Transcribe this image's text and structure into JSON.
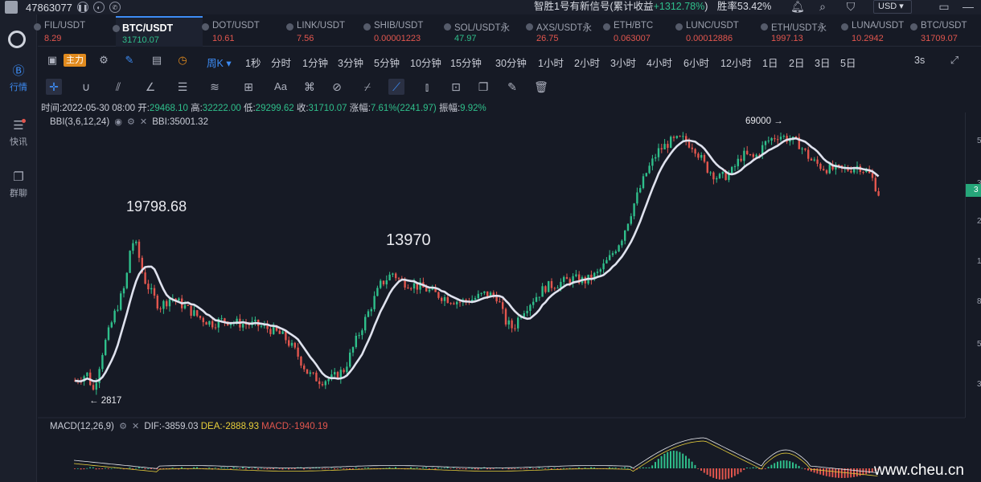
{
  "topbar": {
    "user_id": "47863077",
    "signal_prefix": "智胜1号有新信号(累计收益",
    "signal_gain": "+1312.78%",
    "signal_suffix": ")",
    "win_rate": "胜率53.42%",
    "currency": "USD"
  },
  "nav": {
    "items": [
      {
        "label": "行情",
        "icon": "market-icon",
        "active": true
      },
      {
        "label": "快讯",
        "icon": "news-icon",
        "active": false
      },
      {
        "label": "群聊",
        "icon": "chat-icon",
        "active": false
      }
    ]
  },
  "tickers": [
    {
      "symbol": "FIL/USDT",
      "price": "8.29",
      "dir": "down"
    },
    {
      "symbol": "BTC/USDT",
      "price": "31710.07",
      "dir": "up",
      "active": true
    },
    {
      "symbol": "DOT/USDT",
      "price": "10.61",
      "dir": "down"
    },
    {
      "symbol": "LINK/USDT",
      "price": "7.56",
      "dir": "down"
    },
    {
      "symbol": "SHIB/USDT",
      "price": "0.00001223",
      "dir": "down"
    },
    {
      "symbol": "SOL/USDT永",
      "price": "47.97",
      "dir": "up"
    },
    {
      "symbol": "AXS/USDT永",
      "price": "26.75",
      "dir": "down"
    },
    {
      "symbol": "ETH/BTC",
      "price": "0.063007",
      "dir": "down"
    },
    {
      "symbol": "LUNC/USDT",
      "price": "0.00012886",
      "dir": "down"
    },
    {
      "symbol": "ETH/USDT永",
      "price": "1997.13",
      "dir": "down"
    },
    {
      "symbol": "LUNA/USDT",
      "price": "10.2942",
      "dir": "down"
    },
    {
      "symbol": "BTC/USDT",
      "price": "31709.07",
      "dir": "down"
    }
  ],
  "intervals": {
    "main_label": "主力",
    "selected": "周K",
    "items": [
      "1秒",
      "分时",
      "1分钟",
      "3分钟",
      "5分钟",
      "10分钟",
      "15分钟",
      "30分钟",
      "1小时",
      "2小时",
      "3小时",
      "4小时",
      "6小时",
      "12小时",
      "1日",
      "2日",
      "3日",
      "5日"
    ],
    "refresh": "3s"
  },
  "info": {
    "time_label": "时间:",
    "time": "2022-05-30 08:00",
    "open_label": "开:",
    "open": "29468.10",
    "high_label": "高:",
    "high": "32222.00",
    "low_label": "低:",
    "low": "29299.62",
    "close_label": "收:",
    "close": "31710.07",
    "change_label": "涨幅:",
    "change": "7.61%(2241.97)",
    "amp_label": "振幅:",
    "amp": "9.92%"
  },
  "bbi": {
    "name": "BBI(3,6,12,24)",
    "value": "BBI:35001.32"
  },
  "macd": {
    "name": "MACD(12,26,9)",
    "dif": "DIF:-3859.03",
    "dea": "DEA:-2888.93",
    "macd": "MACD:-1940.19"
  },
  "annotations": {
    "peak_2017": "19798.68",
    "peak_2019": "13970",
    "peak_2021": "69000 →",
    "low_2015": "← 2817"
  },
  "axis_ticks": [
    "5",
    "3",
    "2",
    "1",
    "8",
    "5",
    "3"
  ],
  "current_price_tag": "3",
  "watermark": "www.cheu.cn",
  "colors": {
    "up": "#2fbf8b",
    "down": "#e2564e",
    "bbi_line": "#dfe2ee",
    "accent": "#3d8cf5",
    "dif": "#e8e9ee",
    "dea": "#e8cf3a"
  },
  "chart_data": {
    "type": "candlestick",
    "title": "",
    "yscale": "log",
    "ylim": [
      2500,
      72000
    ],
    "interval": "周K",
    "key_points": [
      {
        "label": "2817",
        "value": 2817
      },
      {
        "label": "19798.68",
        "value": 19798.68
      },
      {
        "label": "13970",
        "value": 13970
      },
      {
        "label": "69000",
        "value": 69000
      }
    ],
    "last_close": 31710.07
  }
}
